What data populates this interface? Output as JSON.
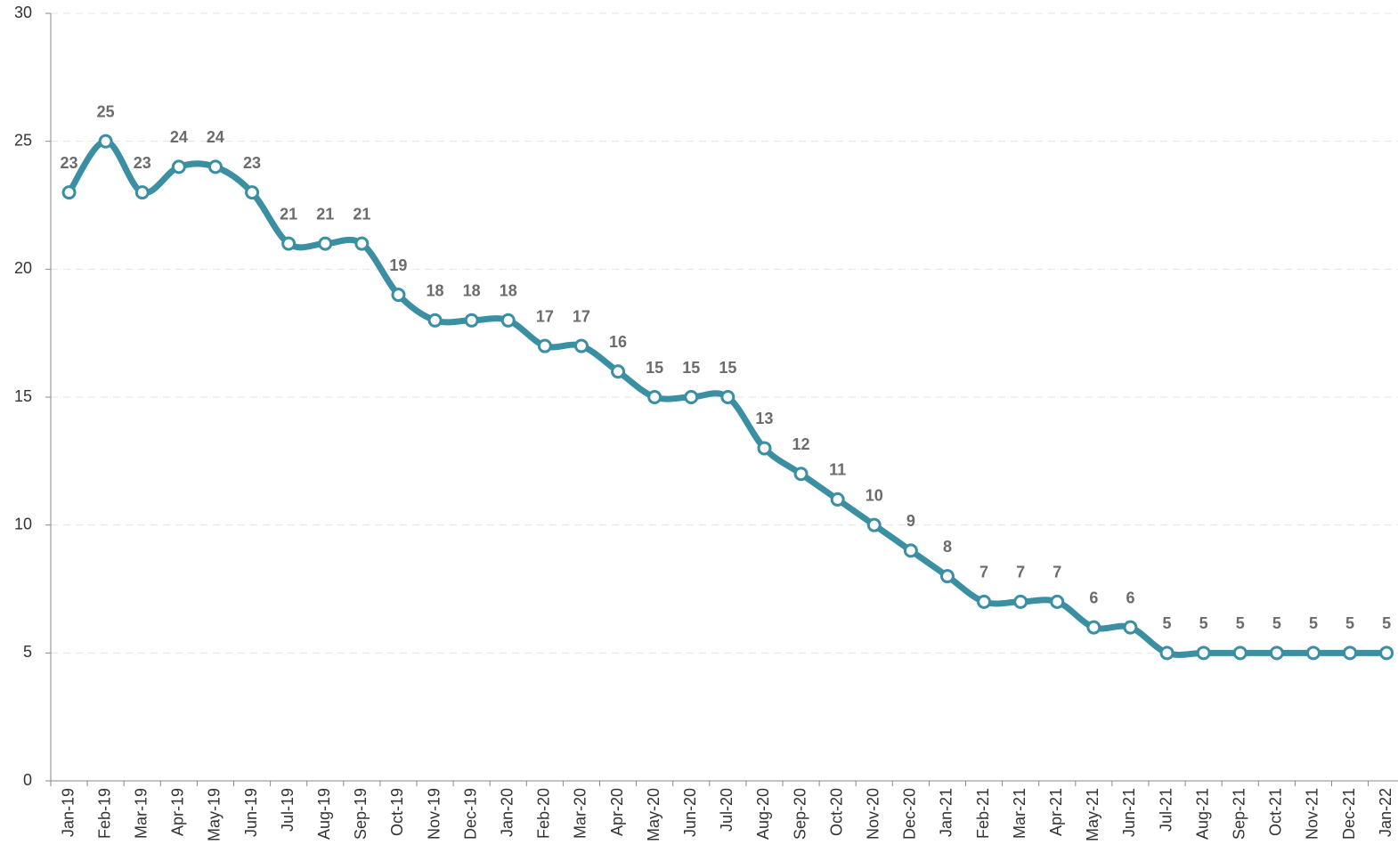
{
  "chart_data": {
    "type": "line",
    "categories": [
      "Jan-19",
      "Feb-19",
      "Mar-19",
      "Apr-19",
      "May-19",
      "Jun-19",
      "Jul-19",
      "Aug-19",
      "Sep-19",
      "Oct-19",
      "Nov-19",
      "Dec-19",
      "Jan-20",
      "Feb-20",
      "Mar-20",
      "Apr-20",
      "May-20",
      "Jun-20",
      "Jul-20",
      "Aug-20",
      "Sep-20",
      "Oct-20",
      "Nov-20",
      "Dec-20",
      "Jan-21",
      "Feb-21",
      "Mar-21",
      "Apr-21",
      "May-21",
      "Jun-21",
      "Jul-21",
      "Aug-21",
      "Sep-21",
      "Oct-21",
      "Nov-21",
      "Dec-21",
      "Jan-22"
    ],
    "values": [
      23,
      25,
      23,
      24,
      24,
      23,
      21,
      21,
      21,
      19,
      18,
      18,
      18,
      17,
      17,
      16,
      15,
      15,
      15,
      13,
      12,
      11,
      10,
      9,
      8,
      7,
      7,
      7,
      6,
      6,
      5,
      5,
      5,
      5,
      5,
      5,
      5
    ],
    "color": "#3a8fa3",
    "ylim": [
      0,
      30
    ],
    "yticks": [
      0,
      5,
      10,
      15,
      20,
      25,
      30
    ],
    "grid": true
  }
}
